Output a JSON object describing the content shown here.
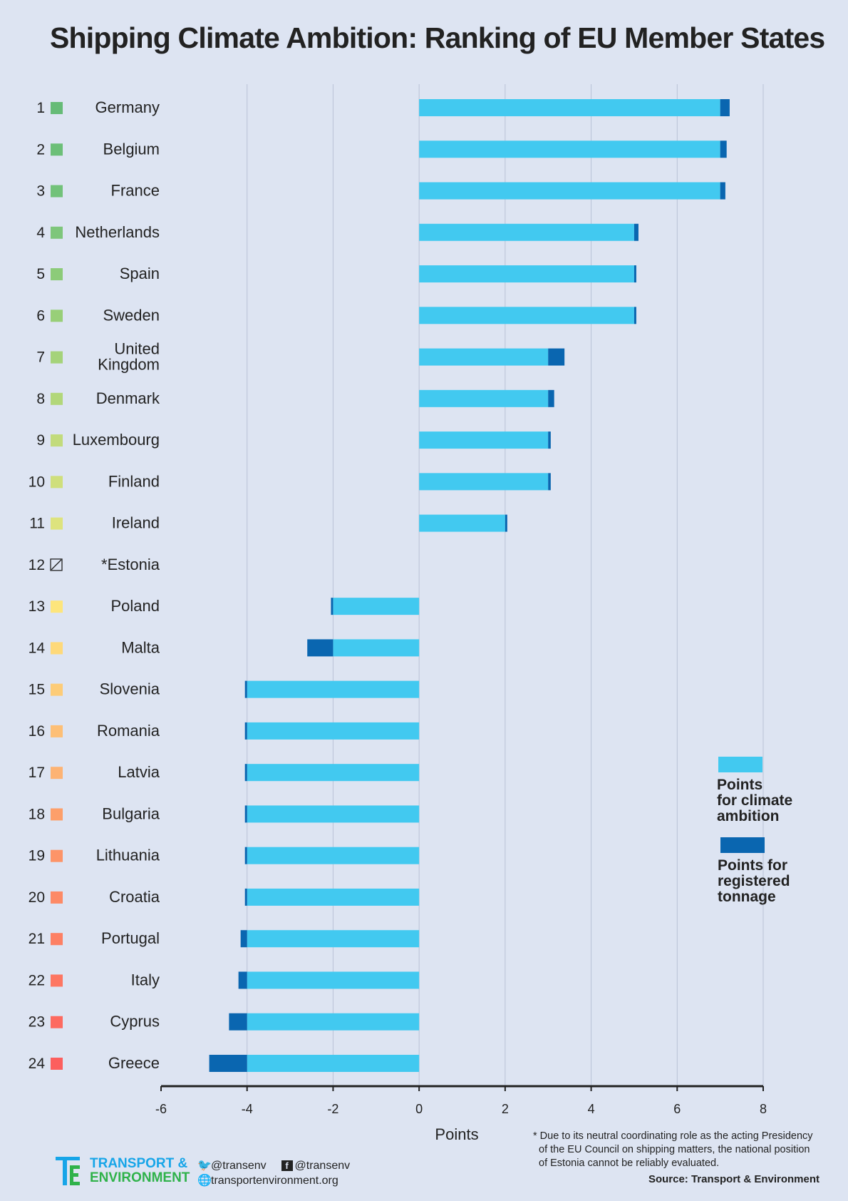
{
  "title": "Shipping Climate Ambition: Ranking of EU Member States",
  "chart_data": {
    "type": "bar",
    "orientation": "horizontal",
    "stacked": true,
    "title": "Shipping Climate Ambition: Ranking of EU Member States",
    "xlabel": "Points",
    "ylabel": "",
    "xlim": [
      -6,
      8
    ],
    "xticks": [
      "-6",
      "-4",
      "-2",
      "0",
      "2",
      "4",
      "6",
      "8"
    ],
    "grid": "vertical",
    "legend_position": "right",
    "categories": [
      {
        "rank": "1",
        "label": [
          "Germany"
        ],
        "color": "#66bb77",
        "climate": 7,
        "tonnage": 0.22
      },
      {
        "rank": "2",
        "label": [
          "Belgium"
        ],
        "color": "#6cbf78",
        "climate": 7,
        "tonnage": 0.15
      },
      {
        "rank": "3",
        "label": [
          "France"
        ],
        "color": "#72c27a",
        "climate": 7,
        "tonnage": 0.12
      },
      {
        "rank": "4",
        "label": [
          "Netherlands"
        ],
        "color": "#7ec67b",
        "climate": 5,
        "tonnage": 0.1
      },
      {
        "rank": "5",
        "label": [
          "Spain"
        ],
        "color": "#8ccb79",
        "climate": 5,
        "tonnage": 0.04
      },
      {
        "rank": "6",
        "label": [
          "Sweden"
        ],
        "color": "#98cf78",
        "climate": 5,
        "tonnage": 0.04
      },
      {
        "rank": "7",
        "label": [
          "United",
          "Kingdom"
        ],
        "color": "#a5d37a",
        "climate": 3,
        "tonnage": 0.38
      },
      {
        "rank": "8",
        "label": [
          "Denmark"
        ],
        "color": "#b2d77a",
        "climate": 3,
        "tonnage": 0.14
      },
      {
        "rank": "9",
        "label": [
          "Luxembourg"
        ],
        "color": "#c2db7c",
        "climate": 3,
        "tonnage": 0.06
      },
      {
        "rank": "10",
        "label": [
          "Finland"
        ],
        "color": "#cfdf7c",
        "climate": 3,
        "tonnage": 0.06
      },
      {
        "rank": "11",
        "label": [
          "Ireland"
        ],
        "color": "#dde37e",
        "climate": 2,
        "tonnage": 0.04
      },
      {
        "rank": "12",
        "label": [
          "*Estonia"
        ],
        "color": "none",
        "climate": 0,
        "tonnage": 0
      },
      {
        "rank": "13",
        "label": [
          "Poland"
        ],
        "color": "#fde57c",
        "climate": -2,
        "tonnage": -0.04
      },
      {
        "rank": "14",
        "label": [
          "Malta"
        ],
        "color": "#fed97a",
        "climate": -2,
        "tonnage": -0.6
      },
      {
        "rank": "15",
        "label": [
          "Slovenia"
        ],
        "color": "#fdcc78",
        "climate": -4,
        "tonnage": -0.04
      },
      {
        "rank": "16",
        "label": [
          "Romania"
        ],
        "color": "#fdbf76",
        "climate": -4,
        "tonnage": -0.05
      },
      {
        "rank": "17",
        "label": [
          "Latvia"
        ],
        "color": "#fdb374",
        "climate": -4,
        "tonnage": -0.05
      },
      {
        "rank": "18",
        "label": [
          "Bulgaria"
        ],
        "color": "#fd9f6a",
        "climate": -4,
        "tonnage": -0.03
      },
      {
        "rank": "19",
        "label": [
          "Lithuania"
        ],
        "color": "#fd9468",
        "climate": -4,
        "tonnage": -0.03
      },
      {
        "rank": "20",
        "label": [
          "Croatia"
        ],
        "color": "#fd8a66",
        "climate": -4,
        "tonnage": -0.04
      },
      {
        "rank": "21",
        "label": [
          "Portugal"
        ],
        "color": "#fd8064",
        "climate": -4,
        "tonnage": -0.15
      },
      {
        "rank": "22",
        "label": [
          "Italy"
        ],
        "color": "#fd7662",
        "climate": -4,
        "tonnage": -0.2
      },
      {
        "rank": "23",
        "label": [
          "Cyprus"
        ],
        "color": "#fd6a60",
        "climate": -4,
        "tonnage": -0.42
      },
      {
        "rank": "24",
        "label": [
          "Greece"
        ],
        "color": "#fc5f5e",
        "climate": -4,
        "tonnage": -0.88
      }
    ],
    "series": [
      {
        "name": "Points for climate ambition",
        "key": "climate",
        "color": "#42c9f0"
      },
      {
        "name": "Points for registered tonnage",
        "key": "tonnage",
        "color": "#0a66b0"
      }
    ],
    "legend": [
      {
        "lines": [
          "Points",
          "for climate",
          "ambition"
        ],
        "color": "#42c9f0"
      },
      {
        "lines": [
          "Points for",
          "registered",
          "tonnage"
        ],
        "color": "#0a66b0"
      }
    ]
  },
  "footer": {
    "brand_line1": "TRANSPORT &",
    "brand_line2": "ENVIRONMENT",
    "twitter": "@transenv",
    "facebook": "@transenv",
    "website": "transportenvironment.org",
    "note_line1": "* Due to its neutral coordinating role as the acting Presidency",
    "note_line2": "of the EU Council on shipping matters, the national position",
    "note_line3": "of Estonia cannot be reliably evaluated.",
    "source": "Source: Transport & Environment"
  }
}
